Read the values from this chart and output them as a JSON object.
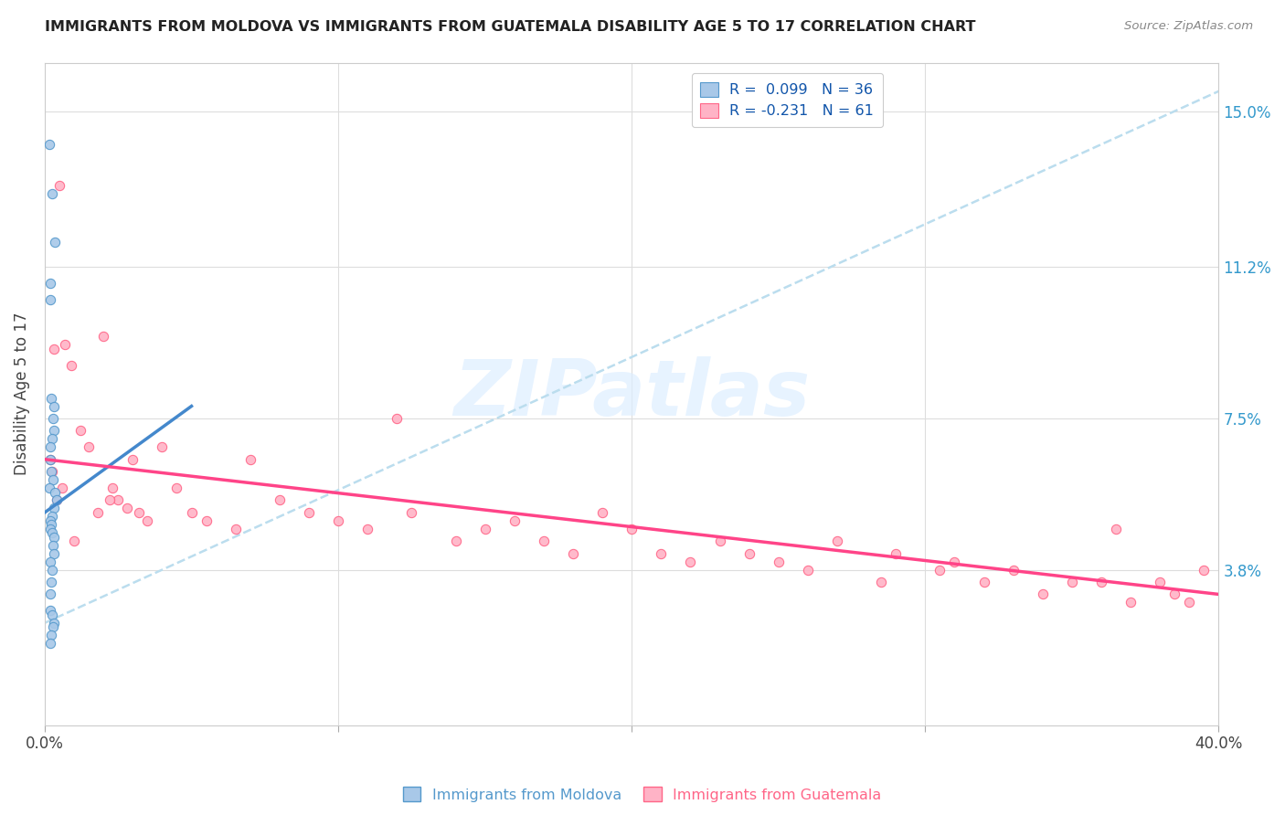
{
  "title": "IMMIGRANTS FROM MOLDOVA VS IMMIGRANTS FROM GUATEMALA DISABILITY AGE 5 TO 17 CORRELATION CHART",
  "source": "Source: ZipAtlas.com",
  "ylabel_ticks": [
    "3.8%",
    "7.5%",
    "11.2%",
    "15.0%"
  ],
  "ylabel_tick_vals": [
    3.8,
    7.5,
    11.2,
    15.0
  ],
  "ylabel_label": "Disability Age 5 to 17",
  "legend_moldova": "R =  0.099   N = 36",
  "legend_guatemala": "R = -0.231   N = 61",
  "moldova_color": "#a8c8e8",
  "moldova_edge": "#5599cc",
  "guatemala_color": "#ffb3c6",
  "guatemala_edge": "#ff6688",
  "trend_moldova_color": "#4488cc",
  "trend_guatemala_color": "#ff4488",
  "dashed_color": "#bbddee",
  "watermark_text": "ZIPatlas",
  "watermark_color": "#ddeeff",
  "xlim": [
    0.0,
    40.0
  ],
  "ylim": [
    0.0,
    16.2
  ],
  "moldova_x": [
    0.15,
    0.25,
    0.35,
    0.2,
    0.18,
    0.22,
    0.3,
    0.28,
    0.32,
    0.25,
    0.2,
    0.18,
    0.22,
    0.28,
    0.15,
    0.35,
    0.4,
    0.3,
    0.25,
    0.2,
    0.22,
    0.18,
    0.25,
    0.3,
    0.28,
    0.32,
    0.2,
    0.25,
    0.22,
    0.18,
    0.2,
    0.25,
    0.3,
    0.28,
    0.22,
    0.2
  ],
  "moldova_y": [
    14.2,
    13.0,
    11.8,
    10.8,
    10.4,
    8.0,
    7.8,
    7.5,
    7.2,
    7.0,
    6.8,
    6.5,
    6.2,
    6.0,
    5.8,
    5.7,
    5.5,
    5.3,
    5.1,
    5.0,
    4.9,
    4.8,
    4.7,
    4.6,
    4.4,
    4.2,
    4.0,
    3.8,
    3.5,
    3.2,
    2.8,
    2.7,
    2.5,
    2.4,
    2.2,
    2.0
  ],
  "guatemala_x": [
    0.2,
    0.3,
    0.5,
    0.7,
    0.9,
    1.2,
    1.5,
    1.8,
    2.0,
    2.3,
    2.5,
    2.8,
    3.0,
    3.5,
    4.0,
    4.5,
    5.0,
    5.5,
    6.5,
    7.0,
    8.0,
    9.0,
    10.0,
    11.0,
    12.5,
    14.0,
    15.0,
    16.0,
    17.0,
    18.0,
    19.0,
    20.0,
    21.0,
    22.0,
    23.0,
    24.0,
    25.0,
    26.0,
    27.0,
    28.5,
    29.0,
    30.5,
    31.0,
    32.0,
    33.0,
    34.0,
    35.0,
    36.0,
    36.5,
    37.0,
    38.0,
    38.5,
    39.0,
    39.5,
    12.0,
    3.2,
    2.2,
    1.0,
    0.6,
    0.4,
    0.25
  ],
  "guatemala_y": [
    6.5,
    9.2,
    13.2,
    9.3,
    8.8,
    7.2,
    6.8,
    5.2,
    9.5,
    5.8,
    5.5,
    5.3,
    6.5,
    5.0,
    6.8,
    5.8,
    5.2,
    5.0,
    4.8,
    6.5,
    5.5,
    5.2,
    5.0,
    4.8,
    5.2,
    4.5,
    4.8,
    5.0,
    4.5,
    4.2,
    5.2,
    4.8,
    4.2,
    4.0,
    4.5,
    4.2,
    4.0,
    3.8,
    4.5,
    3.5,
    4.2,
    3.8,
    4.0,
    3.5,
    3.8,
    3.2,
    3.5,
    3.5,
    4.8,
    3.0,
    3.5,
    3.2,
    3.0,
    3.8,
    7.5,
    5.2,
    5.5,
    4.5,
    5.8,
    5.5,
    6.2
  ],
  "moldova_trend_x": [
    0.0,
    5.0
  ],
  "moldova_trend_y": [
    5.2,
    7.8
  ],
  "dashed_trend_x": [
    0.0,
    40.0
  ],
  "dashed_trend_y": [
    2.5,
    15.5
  ],
  "guatemala_trend_x": [
    0.0,
    40.0
  ],
  "guatemala_trend_y": [
    6.5,
    3.2
  ]
}
